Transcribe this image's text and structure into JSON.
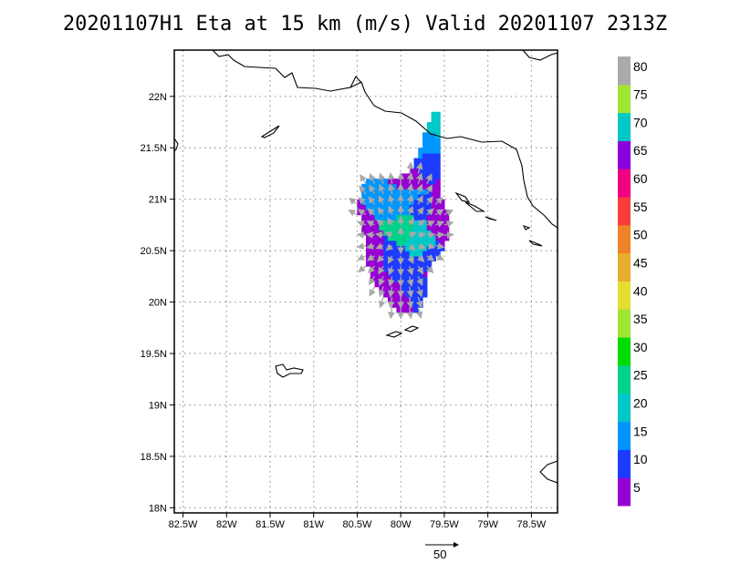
{
  "title": "20201107H1 Eta at 15 km (m/s) Valid 20201107 2313Z",
  "colors": {
    "grid": "#9a9a9a",
    "coast": "#000000",
    "vector": "#a8a8a8"
  },
  "reference_vector": {
    "label": "50",
    "value": 50
  },
  "chart_data": {
    "type": "heatmap",
    "title": "20201107H1 Eta at 15 km (m/s) Valid 20201107 2313Z",
    "xlabel": "",
    "ylabel": "",
    "xlim": [
      -82.6,
      -78.2
    ],
    "ylim": [
      17.95,
      22.45
    ],
    "grid": true,
    "x_ticks": [
      {
        "value": -82.5,
        "label": "82.5W"
      },
      {
        "value": -82.0,
        "label": "82W"
      },
      {
        "value": -81.5,
        "label": "81.5W"
      },
      {
        "value": -81.0,
        "label": "81W"
      },
      {
        "value": -80.5,
        "label": "80.5W"
      },
      {
        "value": -80.0,
        "label": "80W"
      },
      {
        "value": -79.5,
        "label": "79.5W"
      },
      {
        "value": -79.0,
        "label": "79W"
      },
      {
        "value": -78.5,
        "label": "78.5W"
      }
    ],
    "y_ticks": [
      {
        "value": 18.0,
        "label": "18N"
      },
      {
        "value": 18.5,
        "label": "18.5N"
      },
      {
        "value": 19.0,
        "label": "19N"
      },
      {
        "value": 19.5,
        "label": "19.5N"
      },
      {
        "value": 20.0,
        "label": "20N"
      },
      {
        "value": 20.5,
        "label": "20.5N"
      },
      {
        "value": 21.0,
        "label": "21N"
      },
      {
        "value": 21.5,
        "label": "21.5N"
      },
      {
        "value": 22.0,
        "label": "22N"
      }
    ],
    "colorbar": {
      "labels": [
        "5",
        "10",
        "15",
        "20",
        "25",
        "30",
        "35",
        "40",
        "45",
        "50",
        "55",
        "60",
        "65",
        "70",
        "75",
        "80"
      ],
      "colors": [
        "#9600d2",
        "#1e3cff",
        "#0096ff",
        "#00c8c8",
        "#00d28c",
        "#00dc00",
        "#a0e632",
        "#e6dc32",
        "#e6af2d",
        "#f08228",
        "#fa3c3c",
        "#f00082",
        "#8c00dc",
        "#00c8c8",
        "#a0e632",
        "#aaaaaa"
      ]
    },
    "wind_field": [
      {
        "lon": -80.6,
        "lat": 20.4,
        "class": 0
      },
      {
        "lon": -80.5,
        "lat": 20.5,
        "class": 0
      },
      {
        "lon": -80.4,
        "lat": 20.35,
        "class": 0
      },
      {
        "lon": -80.3,
        "lat": 20.2,
        "class": 0
      },
      {
        "lon": -80.15,
        "lat": 20.05,
        "class": 0
      },
      {
        "lon": -79.6,
        "lat": 20.75,
        "class": 0
      },
      {
        "lon": -79.55,
        "lat": 20.95,
        "class": 0
      },
      {
        "lon": -79.9,
        "lat": 21.15,
        "class": 0
      },
      {
        "lon": -79.6,
        "lat": 20.25,
        "class": 0
      },
      {
        "lon": -80.1,
        "lat": 20.35,
        "class": 1
      },
      {
        "lon": -79.9,
        "lat": 20.2,
        "class": 1
      },
      {
        "lon": -79.7,
        "lat": 20.4,
        "class": 1
      },
      {
        "lon": -79.8,
        "lat": 20.9,
        "class": 1
      },
      {
        "lon": -79.75,
        "lat": 21.3,
        "class": 1
      },
      {
        "lon": -80.0,
        "lat": 20.95,
        "class": 2
      },
      {
        "lon": -79.85,
        "lat": 20.65,
        "class": 3
      },
      {
        "lon": -79.95,
        "lat": 20.7,
        "class": 4
      },
      {
        "lon": -79.8,
        "lat": 20.55,
        "class": 3
      },
      {
        "lon": -79.9,
        "lat": 21.05,
        "class": 2
      },
      {
        "lon": -79.8,
        "lat": 21.5,
        "class": 2
      },
      {
        "lon": -79.7,
        "lat": 21.78,
        "class": 3
      }
    ]
  }
}
